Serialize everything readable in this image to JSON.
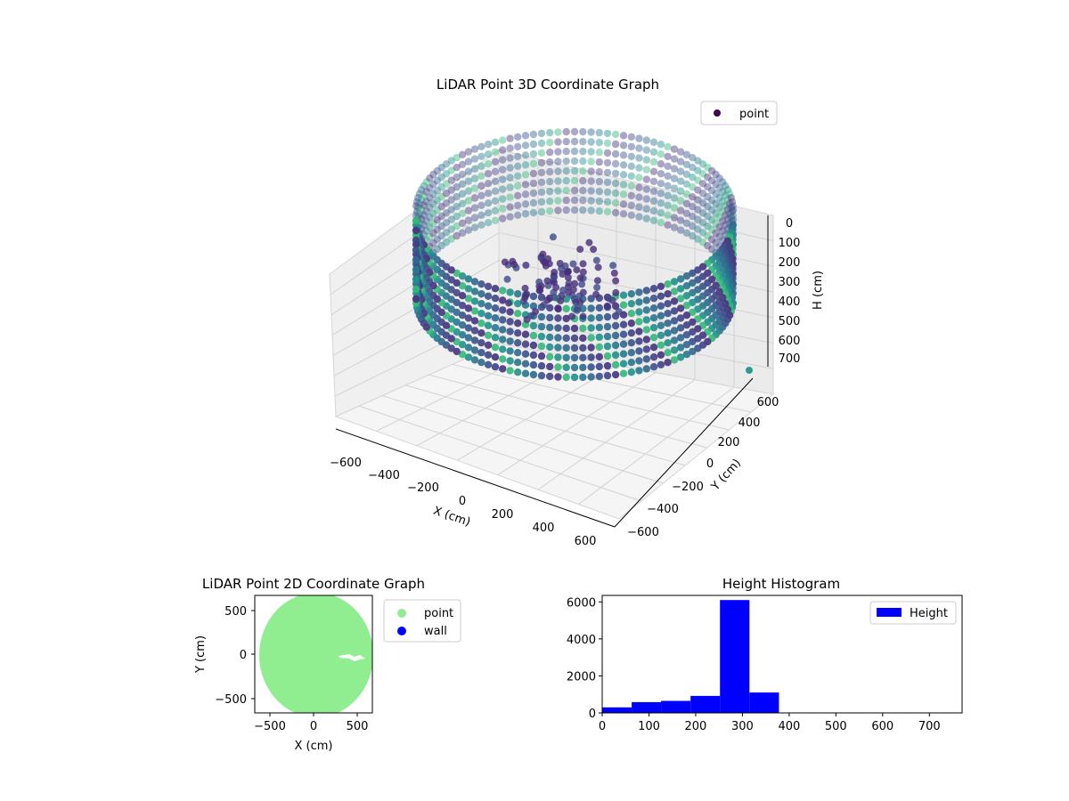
{
  "chart_data": [
    {
      "type": "scatter",
      "projection": "3d",
      "title": "LiDAR Point 3D Coordinate Graph",
      "xlabel": "X (cm)",
      "ylabel": "Y (cm)",
      "zlabel": "H (cm)",
      "x_ticks": [
        "−600",
        "−400",
        "−200",
        "0",
        "200",
        "400",
        "600"
      ],
      "y_ticks": [
        "−600",
        "−400",
        "−200",
        "0",
        "200",
        "400",
        "600"
      ],
      "z_ticks": [
        "0",
        "100",
        "200",
        "300",
        "400",
        "500",
        "600",
        "700"
      ],
      "xlim": [
        -650,
        650
      ],
      "ylim": [
        -650,
        650
      ],
      "zlim": [
        0,
        760
      ],
      "z_inverted": true,
      "legend": {
        "placement": "top-right",
        "entries": [
          {
            "label": "point",
            "color": "#440154"
          }
        ]
      },
      "colormap": "viridis",
      "grid": true,
      "structure": "ring of points at radius ~600 cm with heights 0–400 cm, central cluster near origin"
    },
    {
      "type": "scatter",
      "title": "LiDAR Point 2D Coordinate Graph",
      "xlabel": "X (cm)",
      "ylabel": "Y (cm)",
      "x_ticks": [
        "−500",
        "0",
        "500"
      ],
      "y_ticks": [
        "500",
        "0",
        "−500"
      ],
      "xlim": [
        -650,
        650
      ],
      "ylim": [
        -650,
        650
      ],
      "legend": {
        "placement": "outside-right",
        "entries": [
          {
            "label": "point",
            "color": "#90ee90"
          },
          {
            "label": "wall",
            "color": "#0000ff"
          }
        ]
      },
      "series": [
        {
          "name": "point",
          "color": "#90ee90",
          "shape": "filled disk radius ~650 cm"
        }
      ]
    },
    {
      "type": "bar",
      "subtype": "histogram",
      "title": "Height Histogram",
      "x_ticks": [
        "0",
        "100",
        "200",
        "300",
        "400",
        "500",
        "600",
        "700"
      ],
      "y_ticks": [
        "0",
        "2000",
        "4000",
        "6000"
      ],
      "xlim": [
        0,
        770
      ],
      "ylim": [
        0,
        6350
      ],
      "bin_edges": [
        0,
        63,
        126,
        189,
        252,
        315,
        378
      ],
      "values": [
        300,
        580,
        650,
        920,
        6100,
        1100
      ],
      "color": "#0000ff",
      "legend": {
        "placement": "top-right",
        "entries": [
          {
            "label": "Height",
            "color": "#0000ff"
          }
        ]
      }
    }
  ]
}
